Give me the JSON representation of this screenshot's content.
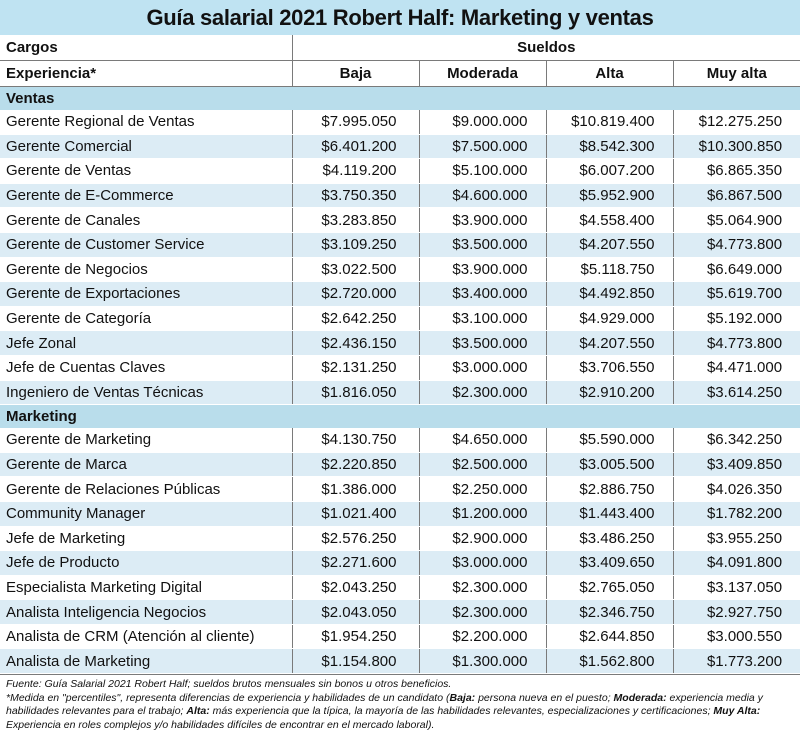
{
  "title": "Guía salarial 2021 Robert Half: Marketing y ventas",
  "header": {
    "cargos": "Cargos",
    "sueldos": "Sueldos",
    "experiencia": "Experiencia*",
    "levels": [
      "Baja",
      "Moderada",
      "Alta",
      "Muy alta"
    ]
  },
  "sections": [
    {
      "name": "Ventas",
      "rows": [
        {
          "cargo": "Gerente Regional de Ventas",
          "values": [
            "$7.995.050",
            "$9.000.000",
            "$10.819.400",
            "$12.275.250"
          ]
        },
        {
          "cargo": "Gerente Comercial",
          "values": [
            "$6.401.200",
            "$7.500.000",
            "$8.542.300",
            "$10.300.850"
          ]
        },
        {
          "cargo": "Gerente de Ventas",
          "values": [
            "$4.119.200",
            "$5.100.000",
            "$6.007.200",
            "$6.865.350"
          ]
        },
        {
          "cargo": "Gerente de E-Commerce",
          "values": [
            "$3.750.350",
            "$4.600.000",
            "$5.952.900",
            "$6.867.500"
          ]
        },
        {
          "cargo": "Gerente de Canales",
          "values": [
            "$3.283.850",
            "$3.900.000",
            "$4.558.400",
            "$5.064.900"
          ]
        },
        {
          "cargo": "Gerente de Customer Service",
          "values": [
            "$3.109.250",
            "$3.500.000",
            "$4.207.550",
            "$4.773.800"
          ]
        },
        {
          "cargo": "Gerente de Negocios",
          "values": [
            "$3.022.500",
            "$3.900.000",
            "$5.118.750",
            "$6.649.000"
          ]
        },
        {
          "cargo": "Gerente de Exportaciones",
          "values": [
            "$2.720.000",
            "$3.400.000",
            "$4.492.850",
            "$5.619.700"
          ]
        },
        {
          "cargo": "Gerente de Categoría",
          "values": [
            "$2.642.250",
            "$3.100.000",
            "$4.929.000",
            "$5.192.000"
          ]
        },
        {
          "cargo": "Jefe Zonal",
          "values": [
            "$2.436.150",
            "$3.500.000",
            "$4.207.550",
            "$4.773.800"
          ]
        },
        {
          "cargo": "Jefe de Cuentas Claves",
          "values": [
            "$2.131.250",
            "$3.000.000",
            "$3.706.550",
            "$4.471.000"
          ]
        },
        {
          "cargo": "Ingeniero de Ventas Técnicas",
          "values": [
            "$1.816.050",
            "$2.300.000",
            "$2.910.200",
            "$3.614.250"
          ]
        }
      ]
    },
    {
      "name": "Marketing",
      "rows": [
        {
          "cargo": "Gerente de Marketing",
          "values": [
            "$4.130.750",
            "$4.650.000",
            "$5.590.000",
            "$6.342.250"
          ]
        },
        {
          "cargo": "Gerente de Marca",
          "values": [
            "$2.220.850",
            "$2.500.000",
            "$3.005.500",
            "$3.409.850"
          ]
        },
        {
          "cargo": "Gerente de Relaciones Públicas",
          "values": [
            "$1.386.000",
            "$2.250.000",
            "$2.886.750",
            "$4.026.350"
          ]
        },
        {
          "cargo": "Community Manager",
          "values": [
            "$1.021.400",
            "$1.200.000",
            "$1.443.400",
            "$1.782.200"
          ]
        },
        {
          "cargo": "Jefe de Marketing",
          "values": [
            "$2.576.250",
            "$2.900.000",
            "$3.486.250",
            "$3.955.250"
          ]
        },
        {
          "cargo": "Jefe de Producto",
          "values": [
            "$2.271.600",
            "$3.000.000",
            "$3.409.650",
            "$4.091.800"
          ]
        },
        {
          "cargo": "Especialista Marketing Digital",
          "values": [
            "$2.043.250",
            "$2.300.000",
            "$2.765.050",
            "$3.137.050"
          ]
        },
        {
          "cargo": "Analista Inteligencia Negocios",
          "values": [
            "$2.043.050",
            "$2.300.000",
            "$2.346.750",
            "$2.927.750"
          ]
        },
        {
          "cargo": "Analista de CRM (Atención al cliente)",
          "values": [
            "$1.954.250",
            "$2.200.000",
            "$2.644.850",
            "$3.000.550"
          ]
        },
        {
          "cargo": "Analista de Marketing",
          "values": [
            "$1.154.800",
            "$1.300.000",
            "$1.562.800",
            "$1.773.200"
          ]
        }
      ]
    }
  ],
  "footer": {
    "source": "Fuente: Guía Salarial 2021 Robert Half; sueldos brutos mensuales sin bonos u otros beneficios.",
    "note_intro": " *Medida en \"percentiles\", representa diferencias de experiencia y habilidades de un candidato (",
    "baja_label": "Baja:",
    "baja_text": " persona nueva en el puesto; ",
    "moderada_label": "Moderada:",
    "moderada_text": " experiencia media y habilidades relevantes para el trabajo; ",
    "alta_label": "Alta:",
    "alta_text": " más experiencia que la típica, la mayoría de las habilidades relevantes, especializaciones y certificaciones; ",
    "muyalta_label": "Muy Alta:",
    "muyalta_text": " Experiencia en roles complejos y/o habilidades difíciles de encontrar en el mercado laboral)."
  }
}
